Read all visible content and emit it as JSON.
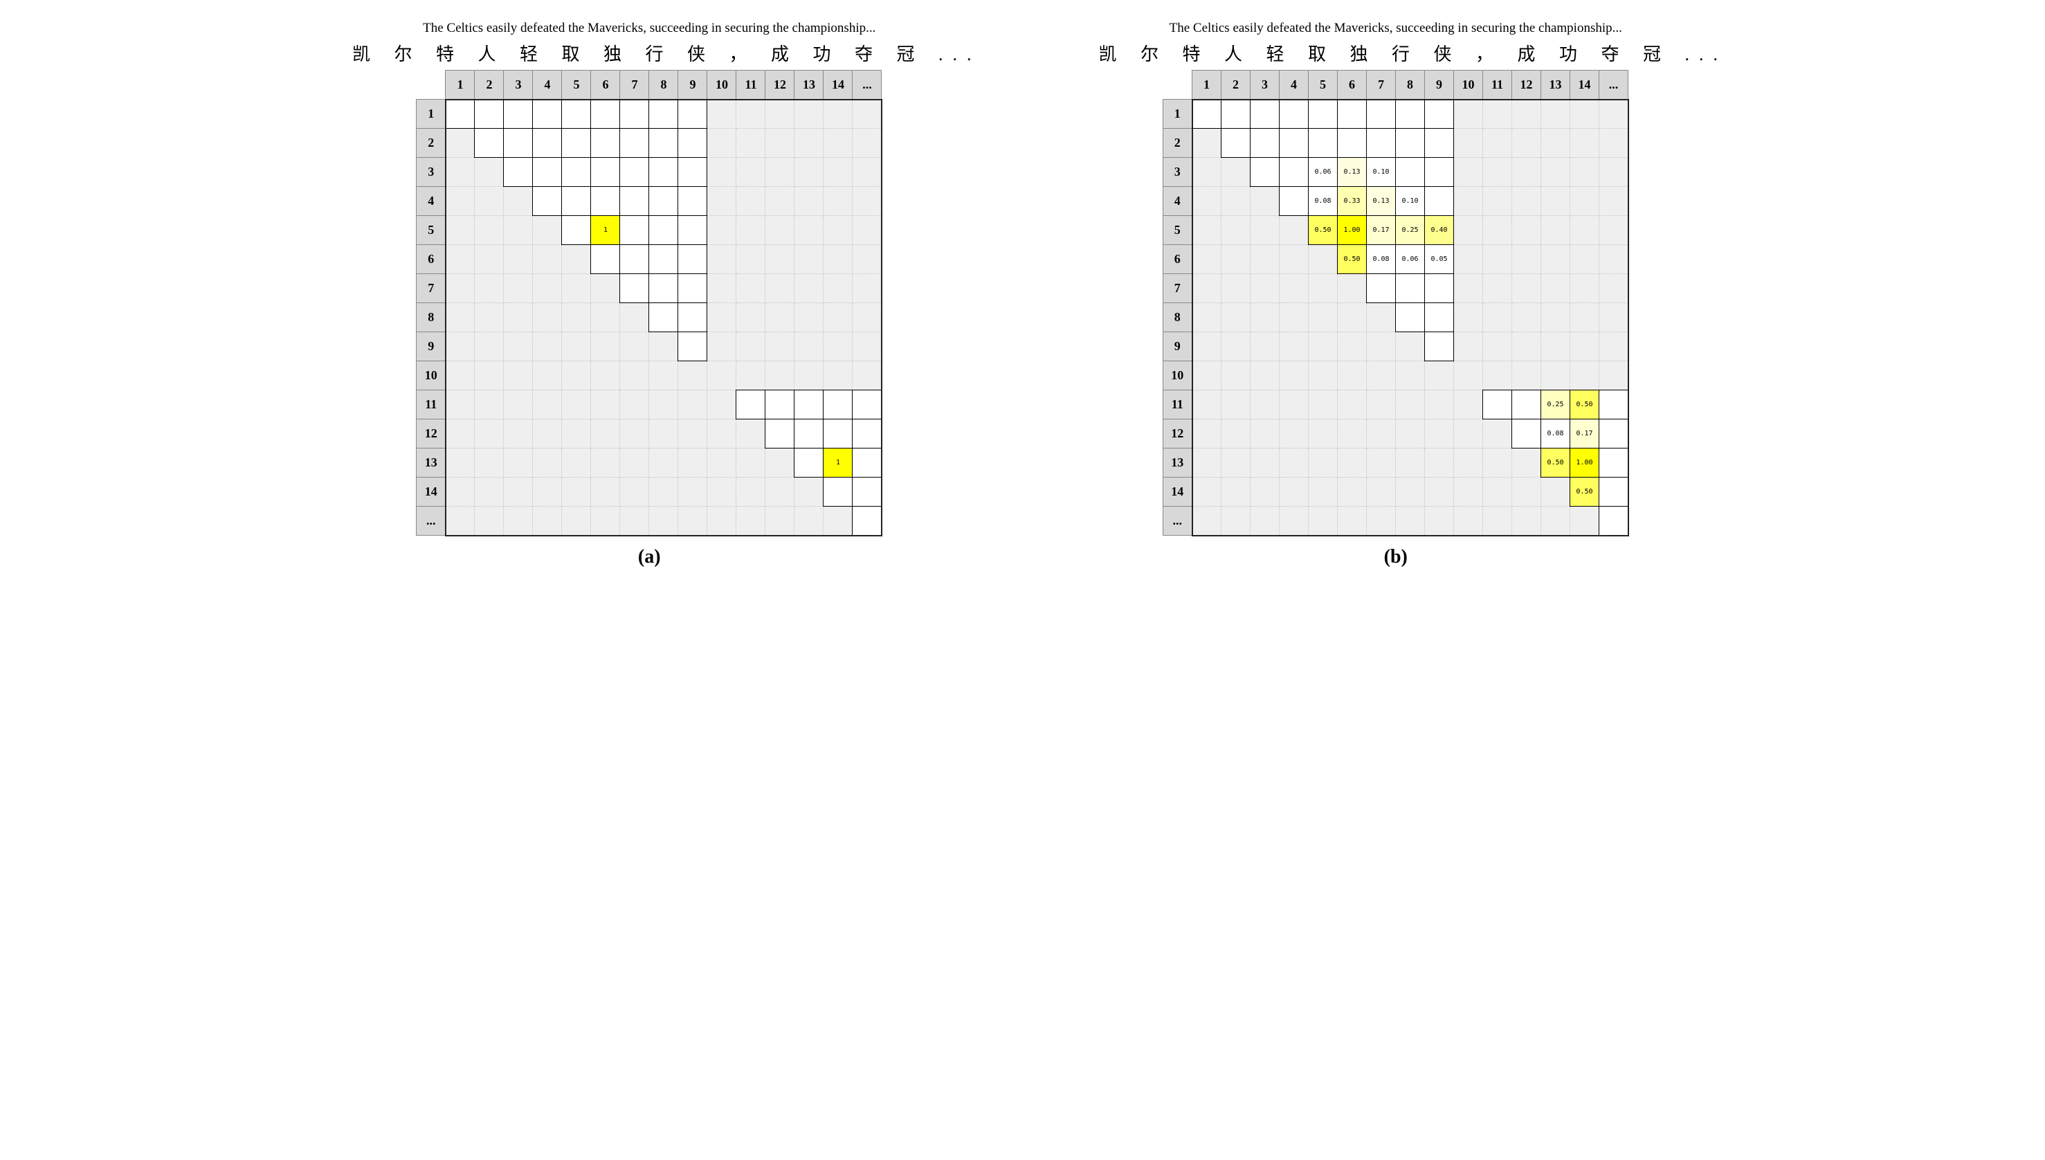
{
  "caption_en": "The Celtics easily defeated the Mavericks, succeeding in securing the championship...",
  "chinese_chars": [
    "凯",
    "尔",
    "特",
    "人",
    "轻",
    "取",
    "独",
    "行",
    "侠",
    "，",
    "成",
    "功",
    "夺",
    "冠",
    "..."
  ],
  "col_labels": [
    "1",
    "2",
    "3",
    "4",
    "5",
    "6",
    "7",
    "8",
    "9",
    "10",
    "11",
    "12",
    "13",
    "14",
    "..."
  ],
  "row_labels": [
    "1",
    "2",
    "3",
    "4",
    "5",
    "6",
    "7",
    "8",
    "9",
    "10",
    "11",
    "12",
    "13",
    "14",
    "..."
  ],
  "grid_size": 15,
  "panel_a": {
    "label": "(a)",
    "region1": {
      "rows": [
        1,
        9
      ],
      "cols": [
        1,
        9
      ]
    },
    "region2": {
      "rows": [
        11,
        15
      ],
      "cols": [
        11,
        15
      ]
    },
    "cells": [
      {
        "r": 5,
        "c": 6,
        "text": "1",
        "bg": "#ffff00"
      },
      {
        "r": 13,
        "c": 14,
        "text": "1",
        "bg": "#ffff00"
      }
    ]
  },
  "panel_b": {
    "label": "(b)",
    "region1": {
      "rows": [
        1,
        9
      ],
      "cols": [
        1,
        9
      ]
    },
    "region2": {
      "rows": [
        11,
        15
      ],
      "cols": [
        11,
        15
      ]
    },
    "cells": [
      {
        "r": 3,
        "c": 5,
        "text": "0.06",
        "bg": "#ffffff"
      },
      {
        "r": 3,
        "c": 6,
        "text": "0.13",
        "bg": "#ffffe0"
      },
      {
        "r": 3,
        "c": 7,
        "text": "0.10",
        "bg": "#ffffff"
      },
      {
        "r": 4,
        "c": 5,
        "text": "0.08",
        "bg": "#ffffff"
      },
      {
        "r": 4,
        "c": 6,
        "text": "0.33",
        "bg": "#ffffb0"
      },
      {
        "r": 4,
        "c": 7,
        "text": "0.13",
        "bg": "#ffffe0"
      },
      {
        "r": 4,
        "c": 8,
        "text": "0.10",
        "bg": "#ffffff"
      },
      {
        "r": 5,
        "c": 5,
        "text": "0.50",
        "bg": "#ffff60"
      },
      {
        "r": 5,
        "c": 6,
        "text": "1.00",
        "bg": "#ffff00"
      },
      {
        "r": 5,
        "c": 7,
        "text": "0.17",
        "bg": "#ffffd0"
      },
      {
        "r": 5,
        "c": 8,
        "text": "0.25",
        "bg": "#ffffc0"
      },
      {
        "r": 5,
        "c": 9,
        "text": "0.40",
        "bg": "#ffff90"
      },
      {
        "r": 6,
        "c": 6,
        "text": "0.50",
        "bg": "#ffff60"
      },
      {
        "r": 6,
        "c": 7,
        "text": "0.08",
        "bg": "#ffffff"
      },
      {
        "r": 6,
        "c": 8,
        "text": "0.06",
        "bg": "#ffffff"
      },
      {
        "r": 6,
        "c": 9,
        "text": "0.05",
        "bg": "#ffffff"
      },
      {
        "r": 11,
        "c": 13,
        "text": "0.25",
        "bg": "#ffffc0"
      },
      {
        "r": 11,
        "c": 14,
        "text": "0.50",
        "bg": "#ffff60"
      },
      {
        "r": 12,
        "c": 13,
        "text": "0.08",
        "bg": "#ffffff"
      },
      {
        "r": 12,
        "c": 14,
        "text": "0.17",
        "bg": "#ffffd0"
      },
      {
        "r": 13,
        "c": 13,
        "text": "0.50",
        "bg": "#ffff60"
      },
      {
        "r": 13,
        "c": 14,
        "text": "1.00",
        "bg": "#ffff00"
      },
      {
        "r": 14,
        "c": 14,
        "text": "0.50",
        "bg": "#ffff60"
      }
    ]
  },
  "colors": {
    "header_bg": "#d8d8d8",
    "matrix_bg": "#efefef",
    "span_bg": "#ffffff",
    "border": "#000000",
    "grid_dotted": "#c4c4c4",
    "highlight_max": "#ffff00"
  },
  "typography": {
    "caption_en_size": 19,
    "caption_cn_size": 26,
    "index_size": 18,
    "value_size": 10,
    "sublabel_size": 28
  }
}
